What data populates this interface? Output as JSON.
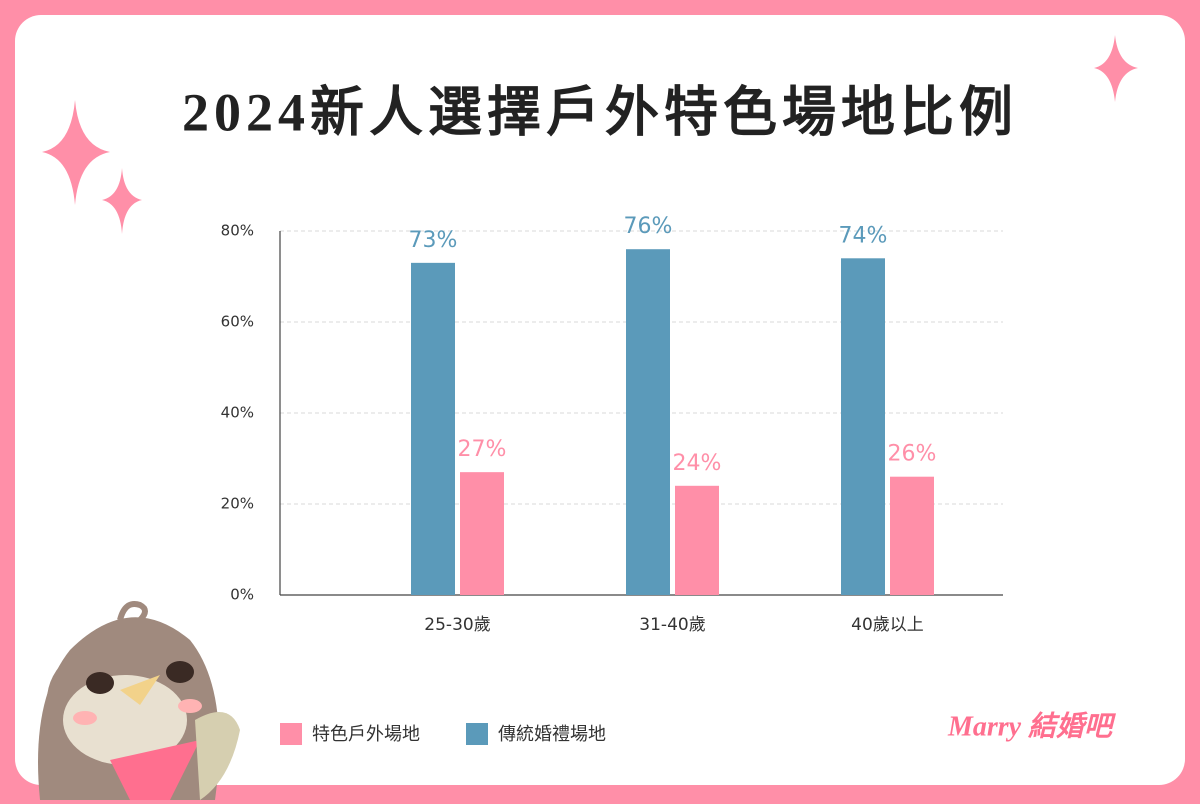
{
  "chart_data": {
    "type": "bar",
    "title": "2024新人選擇戶外特色場地比例",
    "categories": [
      "25-30歲",
      "31-40歲",
      "40歲以上"
    ],
    "series": [
      {
        "name": "特色戶外場地",
        "color": "#ff8fa8",
        "values": [
          27,
          24,
          26
        ],
        "value_labels": [
          "27%",
          "24%",
          "26%"
        ]
      },
      {
        "name": "傳統婚禮場地",
        "color": "#5b9aba",
        "values": [
          73,
          76,
          74
        ],
        "value_labels": [
          "73%",
          "76%",
          "74%"
        ]
      }
    ],
    "ylim": [
      0,
      80
    ],
    "yticks": [
      {
        "value": 0,
        "label": "0%"
      },
      {
        "value": 20,
        "label": "20%"
      },
      {
        "value": 40,
        "label": "40%"
      },
      {
        "value": 60,
        "label": "60%"
      },
      {
        "value": 80,
        "label": "80%"
      }
    ],
    "grid": true
  },
  "brand": "Marry 結婚吧"
}
